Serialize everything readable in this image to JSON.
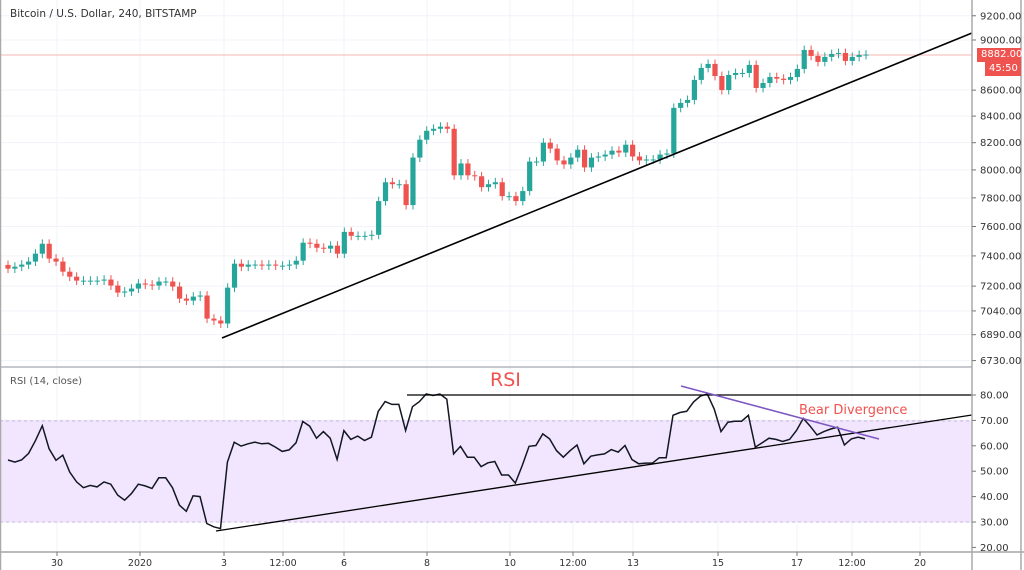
{
  "header": {
    "title": "Bitcoin / U.S. Dollar, 240, BITSTAMP"
  },
  "rsi_panel": {
    "title": "RSI (14, close)"
  },
  "price_tag": {
    "last": "8882.00",
    "countdown": "45:50"
  },
  "annotations": {
    "rsi_label": "RSI",
    "divergence_label": "Bear Divergence"
  },
  "colors": {
    "up": "#26a69a",
    "down": "#ef5350",
    "rsi_band": "#f1e6fd",
    "trend": "#000000",
    "divergence": "#7e57c2",
    "annotation": "#f0524f"
  },
  "chart_data": [
    {
      "type": "candlestick",
      "title": "Bitcoin / U.S. Dollar, 240, BITSTAMP",
      "y_scale": "log",
      "ylim": [
        6700,
        9280
      ],
      "y_ticks": [
        "9200.00",
        "9000.00",
        "8600.00",
        "8400.00",
        "8200.00",
        "8000.00",
        "7800.00",
        "7600.00",
        "7400.00",
        "7200.00",
        "7040.00",
        "6890.00",
        "6730.00"
      ],
      "y_tick_values": [
        9200,
        9000,
        8600,
        8400,
        8200,
        8000,
        7800,
        7600,
        7400,
        7200,
        7040,
        6890,
        6730
      ],
      "x_ticks": [
        "30",
        "2020",
        "3",
        "12:00",
        "6",
        "8",
        "10",
        "12:00",
        "13",
        "15",
        "17",
        "12:00",
        "20"
      ],
      "open_first": 7340,
      "closes": [
        7315,
        7328,
        7342,
        7362,
        7415,
        7482,
        7382,
        7362,
        7295,
        7262,
        7236,
        7236,
        7236,
        7236,
        7243,
        7204,
        7158,
        7165,
        7184,
        7217,
        7210,
        7204,
        7230,
        7230,
        7197,
        7119,
        7106,
        7132,
        7139,
        6991,
        6979,
        6960,
        7190,
        7348,
        7328,
        7342,
        7342,
        7335,
        7342,
        7335,
        7335,
        7342,
        7368,
        7489,
        7482,
        7455,
        7449,
        7469,
        7415,
        7563,
        7536,
        7536,
        7536,
        7543,
        7777,
        7911,
        7897,
        7897,
        7749,
        8090,
        8222,
        8289,
        8304,
        8320,
        8304,
        7961,
        8047,
        7961,
        7954,
        7876,
        7897,
        7911,
        7812,
        7812,
        7777,
        7848,
        8061,
        8061,
        8200,
        8156,
        8069,
        8040,
        8090,
        8148,
        8018,
        8090,
        8098,
        8112,
        8141,
        8127,
        8185,
        8098,
        8069,
        8076,
        8076,
        8112,
        8120,
        8463,
        8501,
        8524,
        8680,
        8775,
        8807,
        8711,
        8601,
        8719,
        8735,
        8735,
        8799,
        8617,
        8656,
        8703,
        8690,
        8680,
        8703,
        8767,
        8919,
        8871,
        8823,
        8863,
        8887,
        8895,
        8831,
        8863,
        8879,
        8882
      ],
      "last_price": 8882.0,
      "trendline": "rising support"
    },
    {
      "type": "line",
      "title": "RSI (14, close)",
      "ylim": [
        17,
        85
      ],
      "y_ticks": [
        "80.00",
        "70.00",
        "60.00",
        "50.00",
        "40.00",
        "30.00",
        "20.00"
      ],
      "y_tick_values": [
        80,
        70,
        60,
        50,
        40,
        30,
        20
      ],
      "band": [
        30,
        70
      ],
      "values": [
        54.4,
        53.6,
        54.5,
        57,
        62,
        67.9,
        58.8,
        54.3,
        56.3,
        49.7,
        45.8,
        43.5,
        44.4,
        43.8,
        45.8,
        44.9,
        40.6,
        38.6,
        41.2,
        44.9,
        44.2,
        43.2,
        47.4,
        47.4,
        43.5,
        36.6,
        34.2,
        40.3,
        40,
        29.4,
        28.1,
        27.4,
        53.6,
        61.4,
        59.9,
        60.8,
        61.4,
        60.8,
        61,
        59.5,
        57.8,
        58.4,
        61.2,
        69.6,
        67.7,
        63,
        65.6,
        63,
        54.6,
        66,
        62.5,
        63.8,
        62.1,
        63.4,
        73.5,
        77.4,
        76.3,
        76.3,
        66,
        75.4,
        77.4,
        80.4,
        79.8,
        80.4,
        78.4,
        56.8,
        59.8,
        55.5,
        55.5,
        51.8,
        53.3,
        53.8,
        48.5,
        48.5,
        45.3,
        52.2,
        59.8,
        60.1,
        64.7,
        62.7,
        58.1,
        55.5,
        58.1,
        60.3,
        52.9,
        55.9,
        56.4,
        56.8,
        58.5,
        57.5,
        60.1,
        54.6,
        52.9,
        53.2,
        53.2,
        55.3,
        55.3,
        72,
        73.1,
        73.6,
        77.3,
        79.6,
        80.4,
        74.5,
        65.6,
        69.3,
        69.7,
        69.7,
        72,
        59.5,
        61.2,
        63,
        62.5,
        61.7,
        62.5,
        66,
        70.8,
        67.7,
        64.3,
        65.6,
        66.6,
        67.3,
        60.3,
        62.7,
        63.4,
        62.7
      ],
      "resistance_level": 80
    }
  ]
}
